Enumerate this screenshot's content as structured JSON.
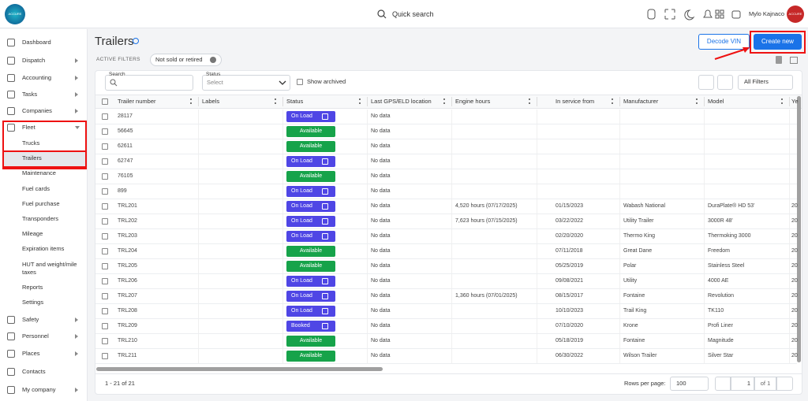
{
  "header": {
    "logo": "ACCURE",
    "search": "Quick search",
    "user": "Mylo Kajnaco",
    "avatar": "ACCURE"
  },
  "sidebar": {
    "items": [
      "Dashboard",
      "Dispatch",
      "Accounting",
      "Tasks",
      "Companies",
      "Fleet",
      "Safety",
      "Personnel",
      "Places",
      "Contacts",
      "My company"
    ],
    "fleet_children": [
      "Trucks",
      "Trailers",
      "Maintenance",
      "Fuel cards",
      "Fuel purchase",
      "Transponders",
      "Mileage",
      "Expiration items",
      "HUT and weight/mile taxes",
      "Reports",
      "Settings"
    ]
  },
  "page": {
    "title": "Trailers",
    "decode_button": "Decode VIN",
    "create_button": "Create new",
    "active_filters_label": "ACTIVE FILTERS",
    "filter_chip": "Not sold or retired"
  },
  "toolbar": {
    "search_label": "Search",
    "status_label": "Status",
    "status_placeholder": "Select",
    "show_archived": "Show archived",
    "all_filters": "All Filters"
  },
  "table": {
    "columns": [
      "Trailer number",
      "Labels",
      "Status",
      "Last GPS/ELD location",
      "Engine hours",
      "In service from",
      "Manufacturer",
      "Model",
      "Ye"
    ],
    "rows": [
      {
        "number": "28117",
        "status": "On Load",
        "location": "No data"
      },
      {
        "number": "56645",
        "status": "Available",
        "location": "No data"
      },
      {
        "number": "62611",
        "status": "Available",
        "location": "No data"
      },
      {
        "number": "62747",
        "status": "On Load",
        "location": "No data"
      },
      {
        "number": "76105",
        "status": "Available",
        "location": "No data"
      },
      {
        "number": "899",
        "status": "On Load",
        "location": "No data"
      },
      {
        "number": "TRL201",
        "status": "On Load",
        "location": "No data",
        "engine_hours": "4,520 hours (07/17/2025)",
        "in_service": "01/15/2023",
        "manufacturer": "Wabash National",
        "model": "DuraPlate® HD 53'",
        "year": "20"
      },
      {
        "number": "TRL202",
        "status": "On Load",
        "location": "No data",
        "engine_hours": "7,623 hours (07/15/2025)",
        "in_service": "03/22/2022",
        "manufacturer": "Utility Trailer",
        "model": "3000R 48'",
        "year": "20"
      },
      {
        "number": "TRL203",
        "status": "On Load",
        "location": "No data",
        "in_service": "02/20/2020",
        "manufacturer": "Thermo King",
        "model": "Thermoking 3000",
        "year": "20"
      },
      {
        "number": "TRL204",
        "status": "Available",
        "location": "No data",
        "in_service": "07/11/2018",
        "manufacturer": "Great Dane",
        "model": "Freedom",
        "year": "20"
      },
      {
        "number": "TRL205",
        "status": "Available",
        "location": "No data",
        "in_service": "05/25/2019",
        "manufacturer": "Polar",
        "model": "Stainless Steel",
        "year": "20"
      },
      {
        "number": "TRL206",
        "status": "On Load",
        "location": "No data",
        "in_service": "09/08/2021",
        "manufacturer": "Utility",
        "model": "4000 AE",
        "year": "20"
      },
      {
        "number": "TRL207",
        "status": "On Load",
        "location": "No data",
        "engine_hours": "1,360 hours (07/01/2025)",
        "in_service": "08/15/2017",
        "manufacturer": "Fontaine",
        "model": "Revolution",
        "year": "20"
      },
      {
        "number": "TRL208",
        "status": "On Load",
        "location": "No data",
        "in_service": "10/10/2023",
        "manufacturer": "Trail King",
        "model": "TK110",
        "year": "20"
      },
      {
        "number": "TRL209",
        "status": "Booked",
        "location": "No data",
        "in_service": "07/10/2020",
        "manufacturer": "Krone",
        "model": "Profi Liner",
        "year": "20"
      },
      {
        "number": "TRL210",
        "status": "Available",
        "location": "No data",
        "in_service": "05/18/2019",
        "manufacturer": "Fontaine",
        "model": "Magnitude",
        "year": "20"
      },
      {
        "number": "TRL211",
        "status": "Available",
        "location": "No data",
        "in_service": "06/30/2022",
        "manufacturer": "Wilson Trailer",
        "model": "Silver Star",
        "year": "20"
      }
    ]
  },
  "footer": {
    "range": "1 - 21 of 21",
    "rows_per_page_label": "Rows per page:",
    "rows_per_page": "100",
    "page": "1",
    "page_of": "of 1"
  }
}
